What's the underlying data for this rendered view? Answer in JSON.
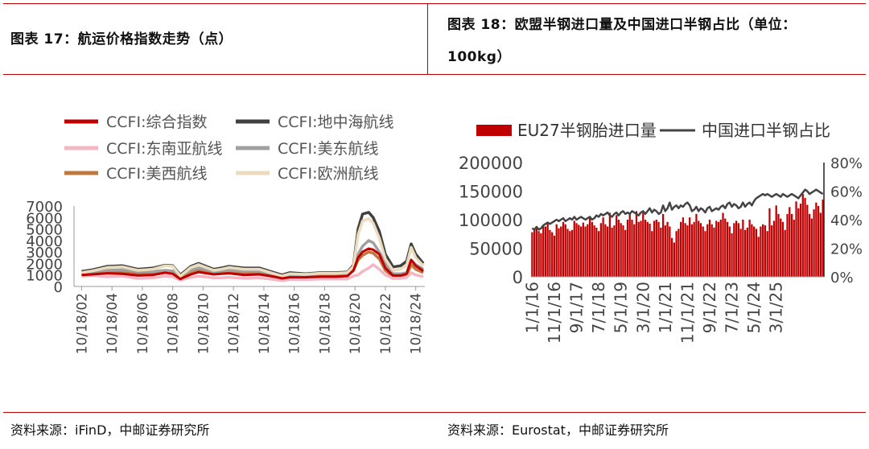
{
  "left_title": "图表 17：航运价格指数走势（点）",
  "right_title_line1": "图表 18：欧盟半钢进口量及中国进口半钢占比（单位：",
  "right_title_line2": "100kg）",
  "left_source": "资料来源：iFinD，中邮证券研究所",
  "right_source": "资料来源：Eurostat，中邮证券研究所",
  "colors": {
    "accent": "#c00000",
    "composite": "#c00000",
    "mediterranean": "#404040",
    "southeast_asia": "#f4b6c2",
    "us_east": "#a0a0a0",
    "us_west": "#c07840",
    "europe": "#eadcbc"
  },
  "chart_data": [
    {
      "type": "line",
      "title": "",
      "xlabel": "",
      "ylabel": "",
      "ylim": [
        0,
        7000
      ],
      "y_ticks": [
        "0",
        "1000",
        "2000",
        "3000",
        "4000",
        "5000",
        "6000",
        "7000"
      ],
      "x_ticks": [
        "10/18/02",
        "10/18/04",
        "10/18/06",
        "10/18/08",
        "10/18/10",
        "10/18/12",
        "10/18/14",
        "10/18/16",
        "10/18/18",
        "10/18/20",
        "10/18/22",
        "10/18/24"
      ],
      "x": [
        2002.8,
        2003.5,
        2004.5,
        2005.5,
        2006.5,
        2007.5,
        2008.3,
        2008.8,
        2009.3,
        2010.0,
        2010.5,
        2011.5,
        2012.0,
        2012.5,
        2013.5,
        2014.5,
        2015.5,
        2016.0,
        2016.5,
        2017.5,
        2018.5,
        2019.5,
        2020.3,
        2020.7,
        2021.0,
        2021.3,
        2021.7,
        2022.0,
        2022.4,
        2022.8,
        2023.3,
        2023.8,
        2024.2,
        2024.5,
        2024.8,
        2025.3
      ],
      "series": [
        {
          "name": "CCFI:综合指数",
          "legend_label": "CCFI:综合指数",
          "color_key": "composite",
          "values": [
            1000,
            1050,
            1150,
            1100,
            950,
            1000,
            1200,
            1100,
            650,
            1050,
            1250,
            1050,
            1100,
            1150,
            1000,
            1050,
            850,
            700,
            800,
            800,
            850,
            850,
            900,
            1400,
            2500,
            3000,
            3300,
            3200,
            2800,
            1600,
            950,
            950,
            1100,
            2300,
            1800,
            1350
          ]
        },
        {
          "name": "CCFI:地中海航线",
          "legend_label": "CCFI:地中海航线",
          "color_key": "mediterranean",
          "values": [
            1300,
            1450,
            1750,
            1800,
            1500,
            1600,
            1850,
            1800,
            1000,
            1750,
            2000,
            1500,
            1600,
            1750,
            1600,
            1600,
            1200,
            1000,
            1200,
            1100,
            1200,
            1200,
            1250,
            1850,
            5000,
            6300,
            6450,
            6000,
            4800,
            2800,
            1700,
            1800,
            2200,
            3700,
            2800,
            2000
          ]
        },
        {
          "name": "CCFI:东南亚航线",
          "legend_label": "CCFI:东南亚航线",
          "color_key": "southeast_asia",
          "values": [
            900,
            950,
            850,
            900,
            700,
            750,
            900,
            850,
            550,
            800,
            900,
            750,
            750,
            800,
            700,
            750,
            600,
            500,
            600,
            600,
            650,
            650,
            650,
            900,
            1000,
            1300,
            1600,
            1900,
            1500,
            1000,
            700,
            700,
            800,
            1200,
            1000,
            850
          ]
        },
        {
          "name": "CCFI:美东航线",
          "legend_label": "CCFI:美东航线",
          "color_key": "us_east",
          "values": [
            1200,
            1300,
            1400,
            1450,
            1300,
            1300,
            1400,
            1350,
            1000,
            1400,
            1600,
            1300,
            1350,
            1400,
            1350,
            1350,
            1050,
            900,
            1000,
            1000,
            1100,
            1100,
            1150,
            1600,
            2800,
            3500,
            4000,
            3800,
            3000,
            2000,
            1100,
            1100,
            1200,
            2300,
            1900,
            1500
          ]
        },
        {
          "name": "CCFI:美西航线",
          "legend_label": "CCFI:美西航线",
          "color_key": "us_west",
          "values": [
            1050,
            1100,
            1250,
            1200,
            1100,
            1100,
            1250,
            1200,
            750,
            1150,
            1400,
            1100,
            1150,
            1200,
            1100,
            1100,
            850,
            700,
            850,
            850,
            900,
            900,
            950,
            1400,
            2300,
            2700,
            3000,
            2900,
            2400,
            1400,
            850,
            850,
            950,
            1900,
            1500,
            1200
          ]
        },
        {
          "name": "CCFI:欧洲航线",
          "legend_label": "CCFI:欧洲航线",
          "color_key": "europe",
          "values": [
            1200,
            1350,
            1650,
            1700,
            1400,
            1500,
            1800,
            1750,
            900,
            1650,
            1900,
            1400,
            1500,
            1650,
            1500,
            1500,
            1100,
            900,
            1100,
            1050,
            1150,
            1150,
            1200,
            1750,
            4500,
            5700,
            5900,
            5500,
            4200,
            2400,
            1400,
            1500,
            1850,
            3400,
            2500,
            1800
          ]
        }
      ]
    },
    {
      "type": "bar",
      "title": "",
      "xlabel": "",
      "ylabel": "",
      "ylim": [
        0,
        200000
      ],
      "y2lim": [
        0,
        0.8
      ],
      "y_ticks": [
        "0",
        "50000",
        "100000",
        "150000",
        "200000"
      ],
      "y2_ticks": [
        "0%",
        "20%",
        "40%",
        "60%",
        "80%"
      ],
      "x_ticks": [
        "1/1/16",
        "11/1/16",
        "9/1/17",
        "7/1/18",
        "5/1/19",
        "3/1/20",
        "1/1/21",
        "11/1/21",
        "9/1/22",
        "7/1/23",
        "5/1/24",
        "3/1/25"
      ],
      "series": [
        {
          "name": "EU27半钢胎进口量",
          "legend_label": "EU27半钢胎进口量",
          "kind": "bar",
          "axis": "left",
          "values": [
            78000,
            82000,
            85000,
            80000,
            76000,
            90000,
            88000,
            95000,
            82000,
            78000,
            72000,
            92000,
            85000,
            88000,
            96000,
            92000,
            84000,
            80000,
            82000,
            98000,
            94000,
            91000,
            88000,
            95000,
            88000,
            92000,
            104000,
            96000,
            90000,
            86000,
            80000,
            94000,
            104000,
            92000,
            88000,
            112000,
            86000,
            90000,
            108000,
            100000,
            94000,
            90000,
            82000,
            100000,
            112000,
            100000,
            92000,
            115000,
            96000,
            98000,
            112000,
            100000,
            96000,
            93000,
            80000,
            98000,
            100000,
            96000,
            86000,
            110000,
            90000,
            96000,
            88000,
            68000,
            60000,
            80000,
            84000,
            96000,
            104000,
            94000,
            90000,
            104000,
            92000,
            96000,
            110000,
            98000,
            94000,
            88000,
            80000,
            92000,
            100000,
            92000,
            86000,
            98000,
            96000,
            100000,
            112000,
            102000,
            96000,
            88000,
            76000,
            94000,
            98000,
            94000,
            84000,
            100000,
            82000,
            86000,
            100000,
            92000,
            88000,
            84000,
            70000,
            88000,
            92000,
            90000,
            80000,
            120000,
            90000,
            98000,
            125000,
            110000,
            102000,
            96000,
            82000,
            110000,
            122000,
            110000,
            100000,
            132000,
            120000,
            128000,
            145000,
            138000,
            126000,
            110000,
            102000,
            118000,
            130000,
            124000,
            112000,
            135000
          ]
        },
        {
          "name": "中国进口半钢占比",
          "legend_label": "中国进口半钢占比",
          "kind": "line",
          "axis": "right",
          "values": [
            0.34,
            0.33,
            0.35,
            0.33,
            0.34,
            0.36,
            0.37,
            0.38,
            0.37,
            0.38,
            0.39,
            0.4,
            0.39,
            0.4,
            0.41,
            0.39,
            0.4,
            0.41,
            0.4,
            0.42,
            0.4,
            0.41,
            0.42,
            0.41,
            0.4,
            0.41,
            0.42,
            0.4,
            0.41,
            0.43,
            0.42,
            0.44,
            0.43,
            0.44,
            0.45,
            0.43,
            0.42,
            0.44,
            0.45,
            0.43,
            0.45,
            0.46,
            0.44,
            0.45,
            0.44,
            0.46,
            0.45,
            0.44,
            0.43,
            0.45,
            0.46,
            0.44,
            0.46,
            0.48,
            0.45,
            0.47,
            0.46,
            0.44,
            0.45,
            0.5,
            0.46,
            0.48,
            0.52,
            0.47,
            0.49,
            0.5,
            0.48,
            0.5,
            0.49,
            0.51,
            0.52,
            0.5,
            0.46,
            0.47,
            0.49,
            0.46,
            0.48,
            0.47,
            0.45,
            0.48,
            0.49,
            0.46,
            0.47,
            0.48,
            0.47,
            0.49,
            0.5,
            0.48,
            0.51,
            0.52,
            0.49,
            0.51,
            0.5,
            0.48,
            0.49,
            0.52,
            0.49,
            0.51,
            0.52,
            0.5,
            0.53,
            0.55,
            0.56,
            0.57,
            0.58,
            0.57,
            0.58,
            0.57,
            0.56,
            0.57,
            0.58,
            0.57,
            0.56,
            0.58,
            0.57,
            0.56,
            0.57,
            0.58,
            0.57,
            0.56,
            0.55,
            0.57,
            0.59,
            0.61,
            0.6,
            0.58,
            0.59,
            0.6,
            0.61,
            0.6,
            0.59,
            0.58
          ]
        }
      ]
    }
  ]
}
